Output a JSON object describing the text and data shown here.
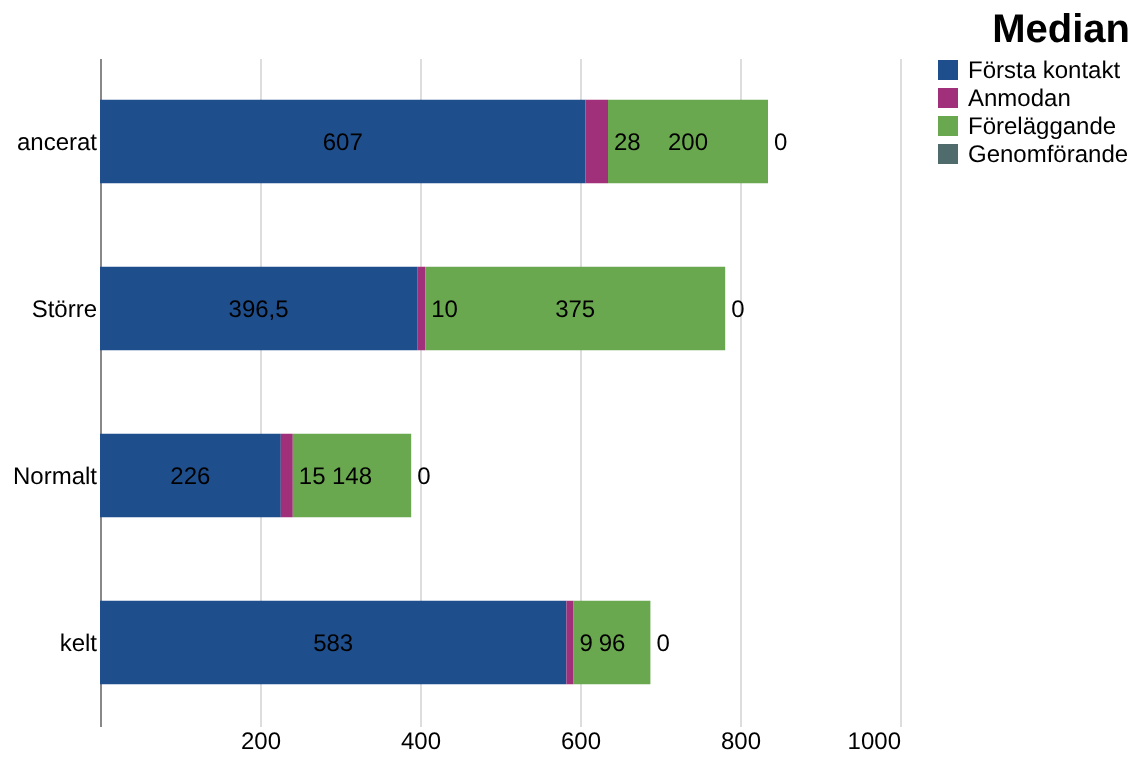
{
  "chart_data": {
    "type": "bar",
    "title": "Median",
    "orientation": "horizontal",
    "stacked": true,
    "categories": [
      "ancerat",
      "Större",
      "Normalt",
      "kelt"
    ],
    "series": [
      {
        "name": "Första kontakt",
        "color": "#1f4e8c",
        "values": [
          607,
          396.5,
          226,
          583
        ],
        "value_labels": [
          "607",
          "396,5",
          "226",
          "583"
        ]
      },
      {
        "name": "Anmodan",
        "color": "#a0307a",
        "values": [
          28,
          10,
          15,
          9
        ],
        "value_labels": [
          "28",
          "10",
          "15",
          "9"
        ]
      },
      {
        "name": "Föreläggande",
        "color": "#6aa84f",
        "values": [
          200,
          375,
          148,
          96
        ],
        "value_labels": [
          "200",
          "375",
          "148",
          "96"
        ]
      },
      {
        "name": "Genomförande",
        "color": "#4f6b6b",
        "values": [
          0,
          0,
          0,
          0
        ],
        "value_labels": [
          "0",
          "0",
          "0",
          "0"
        ]
      }
    ],
    "xlim": [
      0,
      1000
    ],
    "xticks": [
      200,
      400,
      600,
      800,
      1000
    ],
    "grid": "x",
    "legend": "right"
  }
}
